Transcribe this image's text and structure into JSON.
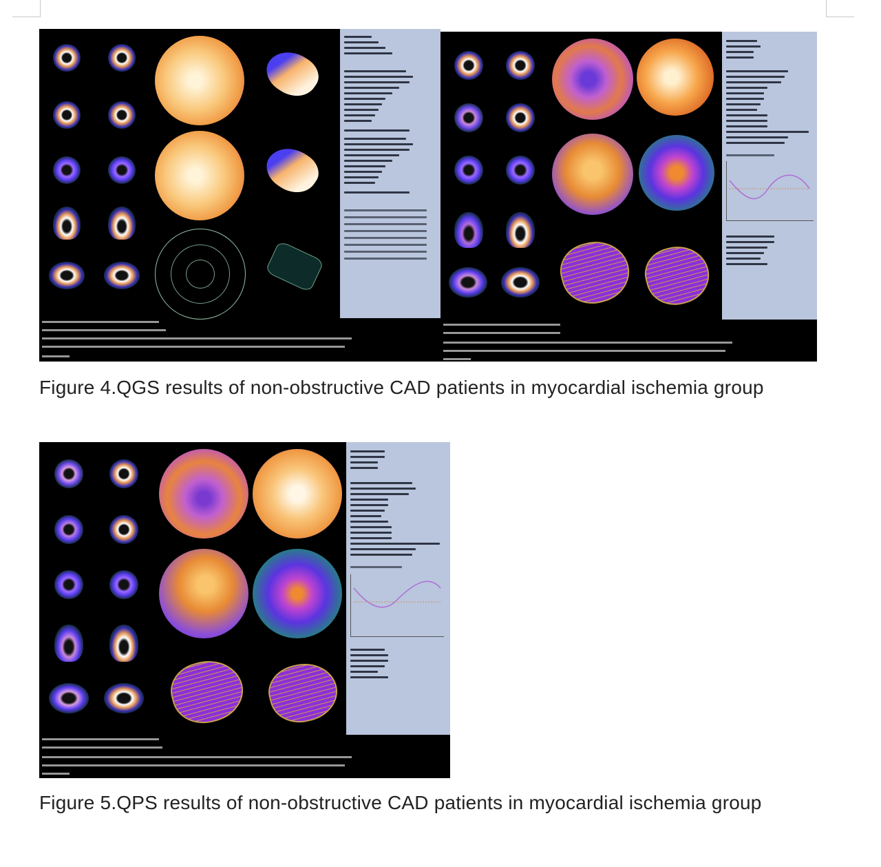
{
  "figures": [
    {
      "caption": "Figure 4.QGS results of non-obstructive CAD patients in myocardial ischemia group",
      "panels": [
        {
          "name": "qgs-panel-left",
          "colors": {
            "background": "#000000",
            "info": "#b9c6dd",
            "polar_map": "#f4a04a"
          }
        },
        {
          "name": "qgs-panel-right",
          "colors": {
            "background": "#000000",
            "info": "#b9c6dd",
            "polar_map": "#e0782c"
          }
        }
      ]
    },
    {
      "caption": "Figure 5.QPS results of non-obstructive CAD patients in myocardial ischemia group",
      "panels": [
        {
          "name": "qps-panel",
          "colors": {
            "background": "#000000",
            "info": "#b9c6dd",
            "polar_map": "#e88a30"
          }
        }
      ]
    }
  ]
}
